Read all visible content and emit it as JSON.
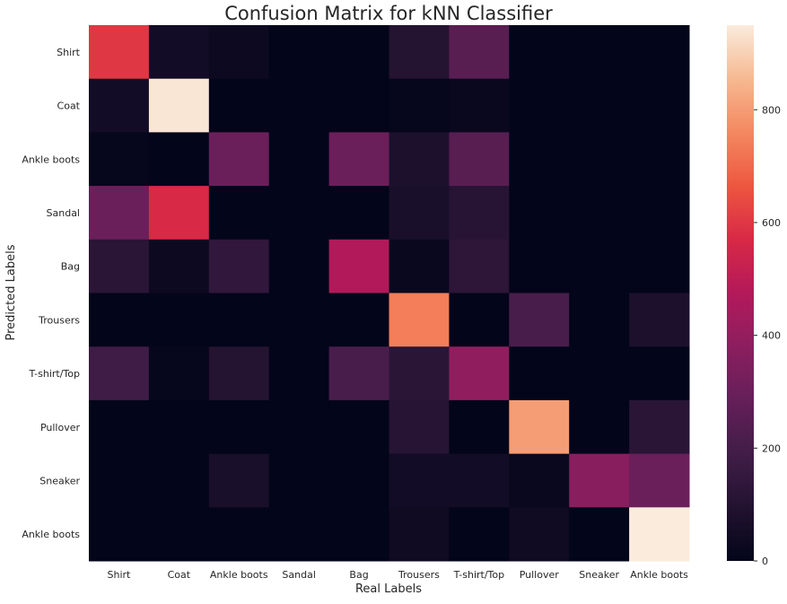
{
  "chart_data": {
    "type": "heatmap",
    "title": "Confusion Matrix for kNN Classifier",
    "xlabel": "Real Labels",
    "ylabel": "Predicted Labels",
    "x_categories": [
      "Shirt",
      "Coat",
      "Ankle boots",
      "Sandal",
      "Bag",
      "Trousers",
      "T-shirt/Top",
      "Pullover",
      "Sneaker",
      "Ankle boots"
    ],
    "y_categories": [
      "Shirt",
      "Coat",
      "Ankle boots",
      "Sandal",
      "Bag",
      "Trousers",
      "T-shirt/Top",
      "Pullover",
      "Sneaker",
      "Ankle boots"
    ],
    "values": [
      [
        600,
        50,
        30,
        0,
        0,
        100,
        250,
        0,
        0,
        0
      ],
      [
        50,
        940,
        0,
        0,
        0,
        10,
        20,
        0,
        0,
        0
      ],
      [
        10,
        0,
        300,
        0,
        300,
        80,
        250,
        0,
        0,
        0
      ],
      [
        300,
        570,
        0,
        0,
        0,
        70,
        110,
        0,
        0,
        0
      ],
      [
        120,
        30,
        140,
        0,
        470,
        20,
        130,
        0,
        0,
        0
      ],
      [
        0,
        0,
        0,
        0,
        0,
        740,
        0,
        210,
        0,
        80
      ],
      [
        180,
        10,
        100,
        0,
        210,
        120,
        390,
        0,
        0,
        0
      ],
      [
        0,
        0,
        0,
        0,
        0,
        110,
        0,
        800,
        0,
        120
      ],
      [
        0,
        0,
        70,
        0,
        0,
        50,
        50,
        20,
        370,
        300
      ],
      [
        0,
        0,
        0,
        0,
        0,
        40,
        0,
        40,
        0,
        950
      ]
    ],
    "colorbar": {
      "min": 0,
      "max": 950,
      "ticks": [
        0,
        200,
        400,
        600,
        800
      ]
    },
    "colormap": "rocket",
    "grid": false
  }
}
